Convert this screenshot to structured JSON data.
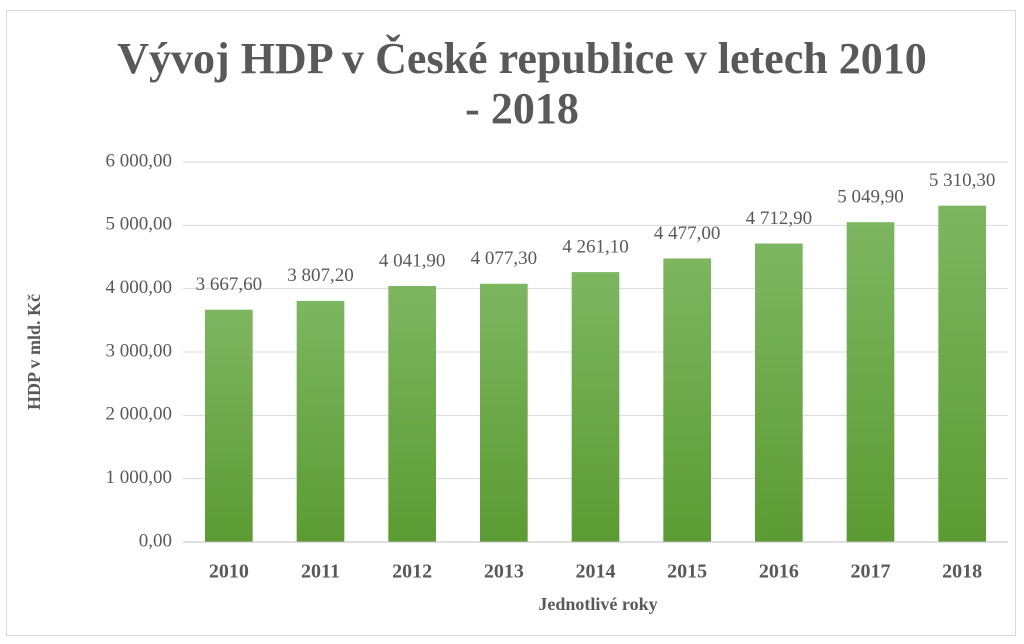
{
  "chart_data": {
    "type": "bar",
    "title": "Vývoj HDP v České republice v letech 2010 - 2018",
    "xlabel": "Jednotlivé roky",
    "ylabel": "HDP v mld. Kč",
    "categories": [
      "2010",
      "2011",
      "2012",
      "2013",
      "2014",
      "2015",
      "2016",
      "2017",
      "2018"
    ],
    "values": [
      3667.6,
      3807.2,
      4041.9,
      4077.3,
      4261.1,
      4477.0,
      4712.9,
      5049.9,
      5310.3
    ],
    "value_labels": [
      "3 667,60",
      "3 807,20",
      "4 041,90",
      "4 077,30",
      "4 261,10",
      "4 477,00",
      "4 712,90",
      "5 049,90",
      "5 310,30"
    ],
    "color": "#6aa84f",
    "ylim": [
      0,
      6000
    ],
    "yticks": [
      {
        "value": 0,
        "label": "0,00"
      },
      {
        "value": 1000,
        "label": "1 000,00"
      },
      {
        "value": 2000,
        "label": "2 000,00"
      },
      {
        "value": 3000,
        "label": "3 000,00"
      },
      {
        "value": 4000,
        "label": "4 000,00"
      },
      {
        "value": 5000,
        "label": "5 000,00"
      },
      {
        "value": 6000,
        "label": "6 000,00"
      }
    ],
    "grid": true
  }
}
